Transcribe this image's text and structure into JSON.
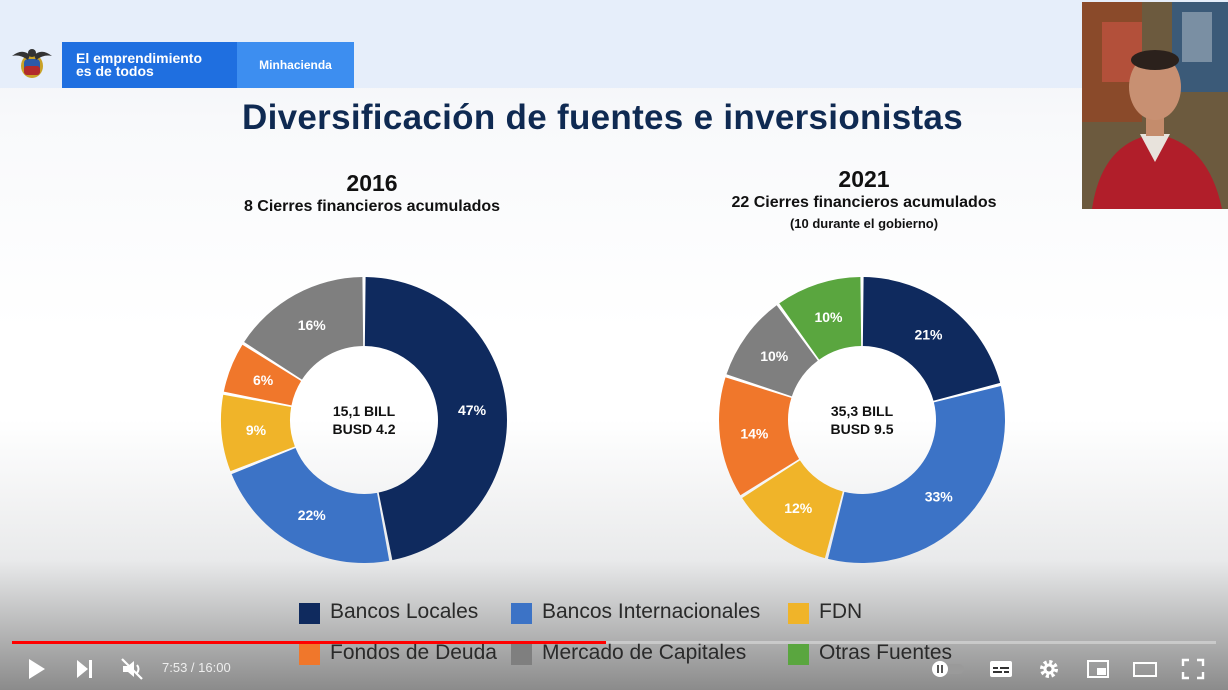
{
  "header": {
    "brand_line1": "El emprendimiento",
    "brand_line2": "es de todos",
    "ministry": "Minhacienda"
  },
  "slide": {
    "title": "Diversificación de fuentes e inversionistas",
    "left": {
      "year": "2016",
      "subtitle": "8 Cierres financieros acumulados",
      "center_line1": "15,1 BILL",
      "center_line2": "BUSD 4.2"
    },
    "right": {
      "year": "2021",
      "subtitle": "22 Cierres financieros acumulados",
      "subtitle2": "(10 durante el gobierno)",
      "center_line1": "35,3 BILL",
      "center_line2": "BUSD 9.5"
    },
    "legend": [
      {
        "label": "Bancos Locales",
        "color": "#0f2a5e"
      },
      {
        "label": "Bancos Internacionales",
        "color": "#3c73c6"
      },
      {
        "label": "FDN",
        "color": "#f0b429"
      },
      {
        "label": "Fondos de Deuda",
        "color": "#f0772b"
      },
      {
        "label": "Mercado de Capitales",
        "color": "#7f7f7f"
      },
      {
        "label": "Otras Fuentes",
        "color": "#5aa63f"
      }
    ]
  },
  "chart_data": [
    {
      "type": "pie",
      "title": "2016",
      "categories": [
        "Bancos Locales",
        "Bancos Internacionales",
        "FDN",
        "Fondos de Deuda",
        "Mercado de Capitales"
      ],
      "values": [
        47,
        22,
        9,
        6,
        16
      ],
      "labels": [
        "47%",
        "22%",
        "9%",
        "6%",
        "16%"
      ],
      "colors": [
        "#0f2a5e",
        "#3c73c6",
        "#f0b429",
        "#f0772b",
        "#7f7f7f"
      ]
    },
    {
      "type": "pie",
      "title": "2021",
      "categories": [
        "Bancos Locales",
        "Bancos Internacionales",
        "FDN",
        "Fondos de Deuda",
        "Mercado de Capitales",
        "Otras Fuentes"
      ],
      "values": [
        21,
        33,
        12,
        14,
        10,
        10
      ],
      "labels": [
        "21%",
        "33%",
        "12%",
        "14%",
        "10%",
        "10%"
      ],
      "colors": [
        "#0f2a5e",
        "#3c73c6",
        "#f0b429",
        "#f0772b",
        "#7f7f7f",
        "#5aa63f"
      ]
    }
  ],
  "player": {
    "current_time": "7:53",
    "separator": " / ",
    "duration": "16:00",
    "progress": 0.493
  }
}
